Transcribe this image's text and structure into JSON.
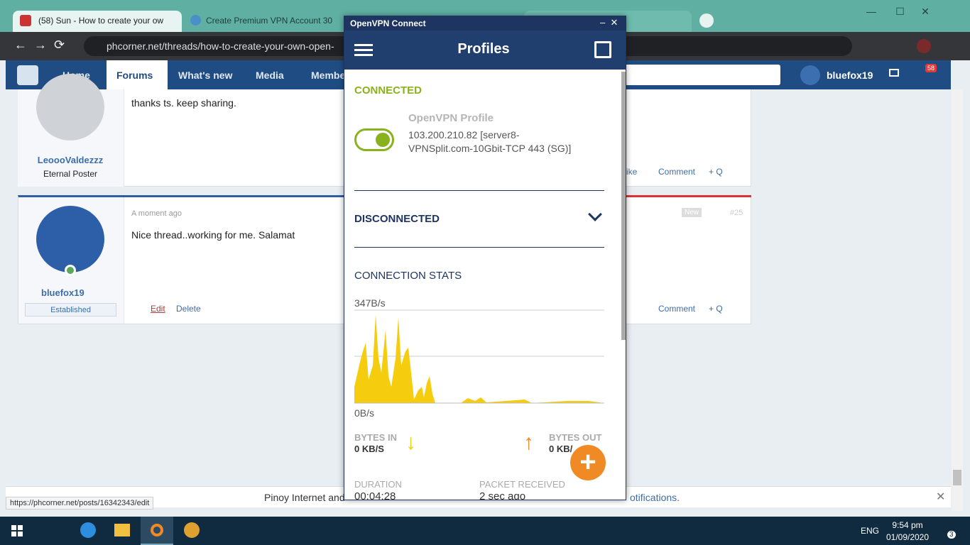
{
  "browser": {
    "tabs": [
      "(58) Sun - How to create your ow",
      "Create Premium VPN Account 30"
    ],
    "url": "phcorner.net/threads/how-to-create-your-own-open-",
    "status_url": "https://phcorner.net/posts/16342343/edit"
  },
  "site": {
    "nav": [
      "Home",
      "Forums",
      "What's new",
      "Media",
      "Member"
    ],
    "user": "bluefox19",
    "notifications": "58",
    "posts": [
      {
        "text": "thanks ts. keep sharing.",
        "author": "LeoooValdezzz",
        "rank": "Eternal Poster",
        "actions": [
          "ike",
          "Comment",
          "+ Q"
        ]
      },
      {
        "time": "A moment ago",
        "text": "Nice thread..working for me. Salamat",
        "author": "bluefox19",
        "rank": "Established",
        "badge": "New",
        "number": "#25",
        "actions": [
          "Edit",
          "Delete",
          "Comment",
          "+ Q"
        ]
      }
    ],
    "notice": [
      "Pinoy Internet and",
      "otifications."
    ]
  },
  "vpn": {
    "window_title": "OpenVPN Connect",
    "header": "Profiles",
    "connected_label": "CONNECTED",
    "profile_name": "OpenVPN Profile",
    "profile_detail": "103.200.210.82 [server8-VPNSplit.com-10Gbit-TCP 443 (SG)]",
    "disconnected_label": "DISCONNECTED",
    "stats_title": "CONNECTION STATS",
    "graph_max": "347B/s",
    "graph_min": "0B/s",
    "bytes_in_label": "BYTES IN",
    "bytes_in": "0 KB/S",
    "bytes_out_label": "BYTES OUT",
    "bytes_out": "0 KB/",
    "duration_label": "DURATION",
    "duration": "00:04:28",
    "packet_label": "PACKET RECEIVED",
    "packet": "2 sec ago"
  },
  "taskbar": {
    "lang": "ENG",
    "time": "9:54 pm",
    "date": "01/09/2020",
    "badge": "3"
  }
}
